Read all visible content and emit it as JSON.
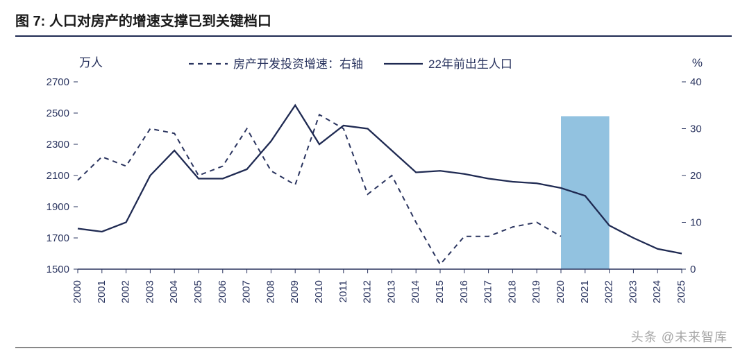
{
  "title": "图 7:  人口对房产的增速支撑已到关键档口",
  "chart": {
    "type": "line-dual-axis",
    "y_left": {
      "unit": "万人",
      "ticks": [
        1500,
        1700,
        1900,
        2100,
        2300,
        2500,
        2700
      ],
      "min": 1500,
      "max": 2700
    },
    "y_right": {
      "unit": "%",
      "ticks": [
        0,
        10,
        20,
        30,
        40
      ],
      "min": 0,
      "max": 40
    },
    "x_labels": [
      "2000",
      "2001",
      "2002",
      "2003",
      "2004",
      "2005",
      "2006",
      "2007",
      "2008",
      "2009",
      "2010",
      "2011",
      "2012",
      "2013",
      "2014",
      "2015",
      "2016",
      "2017",
      "2018",
      "2019",
      "2020",
      "2021",
      "2022",
      "2023",
      "2024",
      "2025"
    ],
    "series": {
      "invest_growth": {
        "label": "房产开发投资增速：右轴",
        "axis": "right",
        "style": "dashed",
        "color": "#2a345f",
        "width": 2,
        "values": [
          19,
          24,
          22,
          30,
          29,
          20,
          22,
          30,
          21,
          18,
          33,
          30,
          16,
          20,
          10,
          1,
          7,
          7,
          9,
          10,
          7
        ]
      },
      "birth_pop": {
        "label": "22年前出生人口",
        "axis": "left",
        "style": "solid",
        "color": "#1f2a52",
        "width": 2.3,
        "values": [
          1760,
          1740,
          1800,
          2100,
          2260,
          2080,
          2080,
          2140,
          2320,
          2550,
          2300,
          2420,
          2400,
          2260,
          2120,
          2130,
          2110,
          2080,
          2060,
          2050,
          2020,
          1970,
          1780,
          1700,
          1630,
          1600
        ]
      }
    },
    "highlight_band": {
      "from_index": 20,
      "to_index": 22,
      "color": "#7fb7db",
      "opacity": 0.85
    },
    "axis_line_color": "#2a345f",
    "font_color": "#2a345f",
    "background": "#ffffff"
  },
  "legend": {
    "items": [
      {
        "key": "invest_growth",
        "label": "房产开发投资增速：右轴",
        "style": "dashed",
        "color": "#2a345f"
      },
      {
        "key": "birth_pop",
        "label": "22年前出生人口",
        "style": "solid",
        "color": "#1f2a52"
      }
    ]
  },
  "watermark": "头条 @未来智库"
}
